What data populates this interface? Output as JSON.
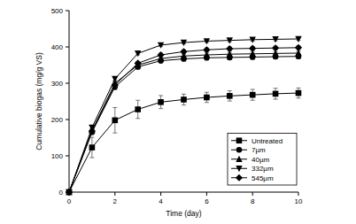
{
  "chart_data": {
    "type": "line",
    "x_label": "Time (day)",
    "y_label": "Cumulative biogas (mg/g VS)",
    "x": [
      0,
      1,
      2,
      3,
      4,
      5,
      6,
      7,
      8,
      9,
      10
    ],
    "xlim": [
      0,
      10
    ],
    "xticks": [
      0,
      2,
      4,
      6,
      8,
      10
    ],
    "ylim": [
      0,
      500
    ],
    "yticks": [
      0,
      100,
      200,
      300,
      400,
      500
    ],
    "grid": false,
    "legend": "lower right",
    "series": [
      {
        "name": "Untreated",
        "color": "#000000",
        "marker": "square",
        "line_style": "solid",
        "values": [
          0,
          123,
          198,
          228,
          248,
          255,
          261,
          265,
          268,
          271,
          273
        ],
        "errors": [
          0,
          28,
          35,
          25,
          18,
          15,
          14,
          14,
          15,
          15,
          14
        ]
      },
      {
        "name": "7µm",
        "color": "#000000",
        "marker": "circle",
        "line_style": "solid",
        "values": [
          0,
          165,
          290,
          345,
          362,
          367,
          370,
          371,
          372,
          373,
          374
        ],
        "errors": [
          0,
          6,
          8,
          7,
          6,
          6,
          6,
          6,
          6,
          6,
          6
        ]
      },
      {
        "name": "40µm",
        "color": "#000000",
        "marker": "triangle",
        "line_style": "solid",
        "values": [
          0,
          170,
          300,
          350,
          368,
          375,
          378,
          380,
          381,
          382,
          383
        ],
        "errors": [
          0,
          5,
          6,
          6,
          5,
          5,
          5,
          5,
          5,
          5,
          5
        ]
      },
      {
        "name": "332µm",
        "color": "#000000",
        "marker": "triangle-down",
        "line_style": "solid",
        "values": [
          0,
          178,
          312,
          382,
          405,
          412,
          416,
          418,
          420,
          421,
          422
        ],
        "errors": [
          0,
          4,
          5,
          4,
          4,
          4,
          4,
          4,
          4,
          4,
          4
        ]
      },
      {
        "name": "545µm",
        "color": "#000000",
        "marker": "diamond",
        "line_style": "solid",
        "values": [
          0,
          168,
          295,
          355,
          378,
          387,
          392,
          395,
          396,
          397,
          398
        ],
        "errors": [
          0,
          5,
          6,
          5,
          5,
          5,
          5,
          5,
          5,
          5,
          5
        ]
      }
    ]
  }
}
